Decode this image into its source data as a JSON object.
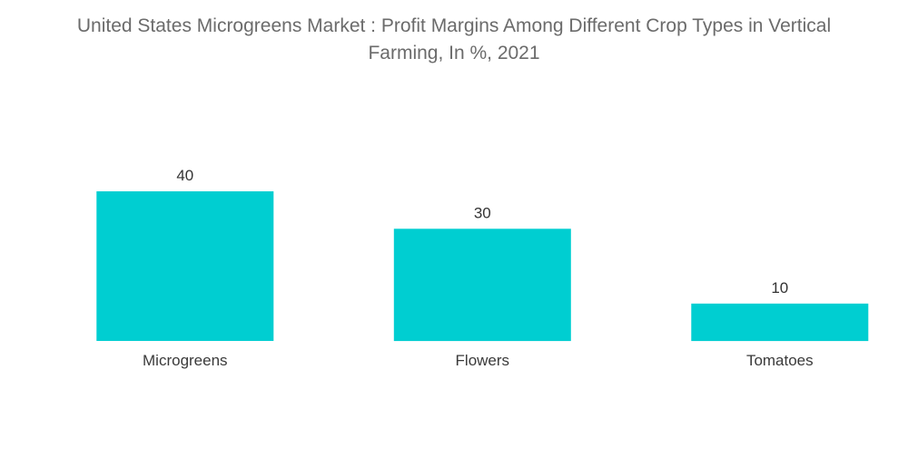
{
  "title": {
    "line1": "United States Microgreens Market : Profit Margins Among Different Crop Types in Vertical",
    "line2": "Farming, In %, 2021"
  },
  "colors": {
    "bar": "#00ced1",
    "title": "#6b6b6b",
    "label": "#333333"
  },
  "chart_data": {
    "type": "bar",
    "title": "United States Microgreens Market : Profit Margins Among Different Crop Types in Vertical Farming, In %, 2021",
    "categories": [
      "Microgreens",
      "Flowers",
      "Tomatoes"
    ],
    "values": [
      40,
      30,
      10
    ],
    "xlabel": "",
    "ylabel": "",
    "ylim": [
      0,
      40
    ],
    "grid": false,
    "legend": "none",
    "data_labels": true
  }
}
